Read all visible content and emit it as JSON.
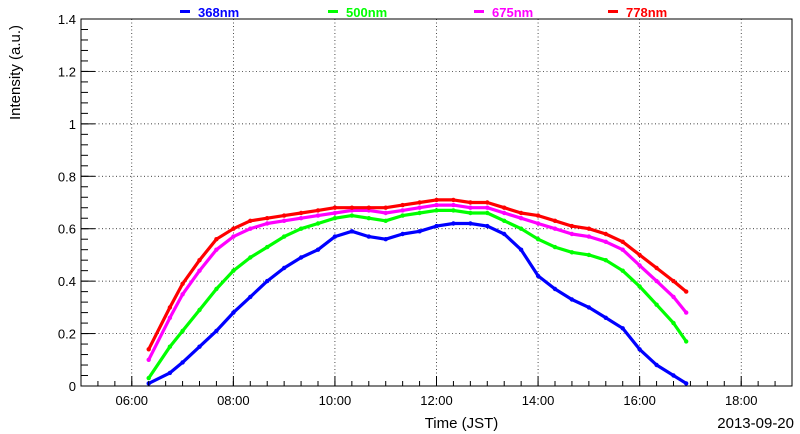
{
  "chart_data": {
    "type": "scatter",
    "date_label": "2013-09-20",
    "xlabel": "Time (JST)",
    "ylabel": "Intensity (a.u.)",
    "xlim": [
      "05:00",
      "19:00"
    ],
    "ylim": [
      0,
      1.4
    ],
    "x_ticks": [
      "06:00",
      "08:00",
      "10:00",
      "12:00",
      "14:00",
      "16:00",
      "18:00"
    ],
    "y_ticks": [
      "0",
      "0.2",
      "0.4",
      "0.6",
      "0.8",
      "1",
      "1.2",
      "1.4"
    ],
    "grid": true,
    "legend_position": "top",
    "x": [
      "06:20",
      "06:45",
      "07:00",
      "07:20",
      "07:40",
      "08:00",
      "08:20",
      "08:40",
      "09:00",
      "09:20",
      "09:40",
      "10:00",
      "10:20",
      "10:40",
      "11:00",
      "11:20",
      "11:40",
      "12:00",
      "12:20",
      "12:40",
      "13:00",
      "13:20",
      "13:40",
      "14:00",
      "14:20",
      "14:40",
      "15:00",
      "15:20",
      "15:40",
      "16:00",
      "16:20",
      "16:40",
      "16:55"
    ],
    "series": [
      {
        "name": "368nm",
        "color": "#0000ff",
        "values": [
          0.01,
          0.05,
          0.09,
          0.15,
          0.21,
          0.28,
          0.34,
          0.4,
          0.45,
          0.49,
          0.52,
          0.57,
          0.59,
          0.57,
          0.56,
          0.58,
          0.59,
          0.61,
          0.62,
          0.62,
          0.61,
          0.58,
          0.52,
          0.42,
          0.37,
          0.33,
          0.3,
          0.26,
          0.22,
          0.14,
          0.08,
          0.04,
          0.01
        ]
      },
      {
        "name": "500nm",
        "color": "#00ff00",
        "values": [
          0.03,
          0.15,
          0.21,
          0.29,
          0.37,
          0.44,
          0.49,
          0.53,
          0.57,
          0.6,
          0.62,
          0.64,
          0.65,
          0.64,
          0.63,
          0.65,
          0.66,
          0.67,
          0.67,
          0.66,
          0.66,
          0.63,
          0.6,
          0.56,
          0.53,
          0.51,
          0.5,
          0.48,
          0.44,
          0.38,
          0.31,
          0.24,
          0.17
        ]
      },
      {
        "name": "675nm",
        "color": "#ff00ff",
        "values": [
          0.1,
          0.26,
          0.35,
          0.44,
          0.52,
          0.57,
          0.6,
          0.62,
          0.63,
          0.64,
          0.65,
          0.66,
          0.67,
          0.67,
          0.66,
          0.67,
          0.68,
          0.69,
          0.69,
          0.68,
          0.68,
          0.66,
          0.64,
          0.62,
          0.6,
          0.58,
          0.57,
          0.55,
          0.52,
          0.46,
          0.4,
          0.34,
          0.28
        ]
      },
      {
        "name": "778nm",
        "color": "#ff0000",
        "values": [
          0.14,
          0.3,
          0.39,
          0.48,
          0.56,
          0.6,
          0.63,
          0.64,
          0.65,
          0.66,
          0.67,
          0.68,
          0.68,
          0.68,
          0.68,
          0.69,
          0.7,
          0.71,
          0.71,
          0.7,
          0.7,
          0.68,
          0.66,
          0.65,
          0.63,
          0.61,
          0.6,
          0.58,
          0.55,
          0.5,
          0.45,
          0.4,
          0.36
        ]
      }
    ]
  }
}
